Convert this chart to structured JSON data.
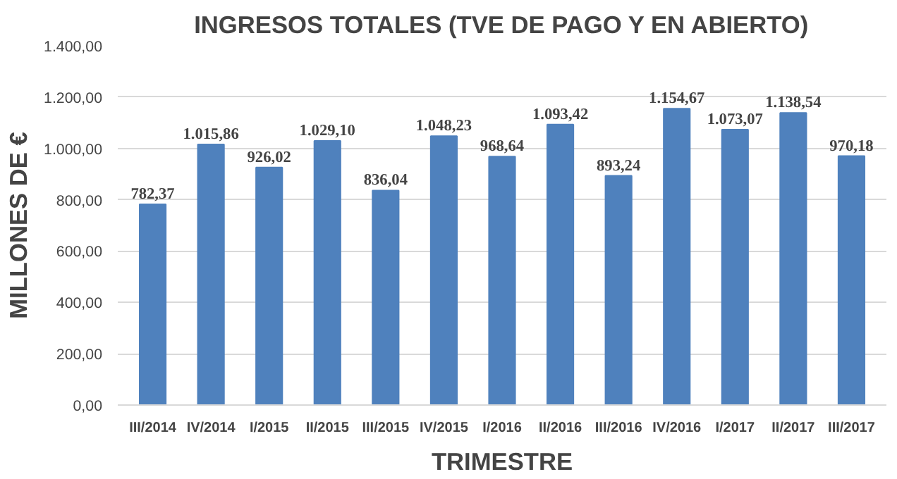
{
  "chart_data": {
    "type": "bar",
    "title": "INGRESOS TOTALES (TVE DE PAGO Y EN ABIERTO)",
    "xlabel": "TRIMESTRE",
    "ylabel": "MILLONES DE €",
    "categories": [
      "III/2014",
      "IV/2014",
      "I/2015",
      "II/2015",
      "III/2015",
      "IV/2015",
      "I/2016",
      "II/2016",
      "III/2016",
      "IV/2016",
      "I/2017",
      "II/2017",
      "III/2017"
    ],
    "values": [
      782.37,
      1015.86,
      926.02,
      1029.1,
      836.04,
      1048.23,
      968.64,
      1093.42,
      893.24,
      1154.67,
      1073.07,
      1138.54,
      970.18
    ],
    "value_labels": [
      "782,37",
      "1.015,86",
      "926,02",
      "1.029,10",
      "836,04",
      "1.048,23",
      "968,64",
      "1.093,42",
      "893,24",
      "1.154,67",
      "1.073,07",
      "1.138,54",
      "970,18"
    ],
    "color": "#4f81bd",
    "ylim": [
      0,
      1400
    ],
    "yticks": [
      {
        "value": 0,
        "label": "0,00"
      },
      {
        "value": 200,
        "label": "200,00"
      },
      {
        "value": 400,
        "label": "400,00"
      },
      {
        "value": 600,
        "label": "600,00"
      },
      {
        "value": 800,
        "label": "800,00"
      },
      {
        "value": 1000,
        "label": "1.000,00"
      },
      {
        "value": 1200,
        "label": "1.200,00"
      },
      {
        "value": 1400,
        "label": "1.400,00"
      }
    ],
    "grid": "y"
  }
}
